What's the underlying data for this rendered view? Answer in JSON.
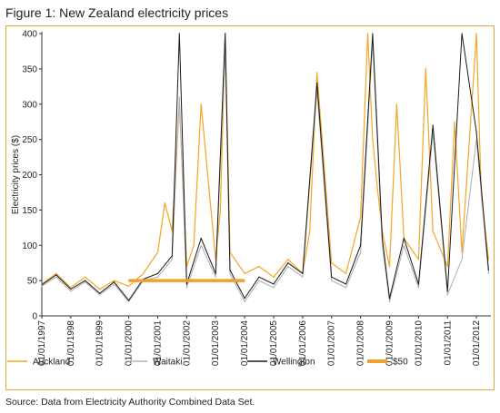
{
  "figure": {
    "title": "Figure 1: New Zealand electricity prices",
    "source": "Source: Data from Electricity Authority Combined Data Set."
  },
  "colors": {
    "auckland": "#f5a623",
    "waitaki": "#b3b3b3",
    "wellington": "#1a1a1a",
    "ref50": "#f0a030",
    "frame": "#e8a33a"
  },
  "chart_data": {
    "type": "line",
    "title": "",
    "xlabel": "",
    "ylabel": "Electricity prices ($)",
    "ylim": [
      0,
      400
    ],
    "yticks": [
      0,
      50,
      100,
      150,
      200,
      250,
      300,
      350,
      400
    ],
    "xlim": [
      "1997-01-01",
      "2012-07-01"
    ],
    "xtick_labels": [
      "01/01/1997",
      "01/01/1998",
      "01/01/1999",
      "01/01/2000",
      "01/01/2001",
      "01/01/2002",
      "01/01/2003",
      "01/01/2004",
      "01/01/2005",
      "01/01/2006",
      "01/01/2007",
      "01/01/2008",
      "01/01/2009",
      "01/01/2010",
      "01/01/2011",
      "01/01/2012"
    ],
    "grid": false,
    "legend_position": "bottom",
    "series": [
      {
        "name": "Auckland",
        "x": [
          "1997-01",
          "1997-07",
          "1998-01",
          "1998-07",
          "1999-01",
          "1999-07",
          "2000-01",
          "2000-07",
          "2001-01",
          "2001-04",
          "2001-07",
          "2001-10",
          "2002-01",
          "2002-04",
          "2002-07",
          "2003-01",
          "2003-03",
          "2003-05",
          "2003-07",
          "2004-01",
          "2004-07",
          "2005-01",
          "2005-07",
          "2006-01",
          "2006-04",
          "2006-07",
          "2007-01",
          "2007-07",
          "2008-01",
          "2008-04",
          "2008-06",
          "2008-08",
          "2008-10",
          "2009-01",
          "2009-04",
          "2009-07",
          "2010-01",
          "2010-04",
          "2010-07",
          "2011-01",
          "2011-04",
          "2011-07",
          "2012-01",
          "2012-03",
          "2012-06"
        ],
        "values": [
          45,
          60,
          40,
          55,
          38,
          50,
          42,
          60,
          90,
          160,
          120,
          300,
          70,
          100,
          300,
          80,
          150,
          400,
          90,
          60,
          70,
          55,
          80,
          60,
          120,
          345,
          75,
          60,
          140,
          400,
          250,
          180,
          120,
          70,
          300,
          110,
          80,
          350,
          120,
          70,
          275,
          90,
          400,
          170,
          80
        ]
      },
      {
        "name": "Waitaki",
        "x": [
          "1997-01",
          "1997-07",
          "1998-01",
          "1998-07",
          "1999-01",
          "1999-07",
          "2000-01",
          "2000-07",
          "2001-01",
          "2001-07",
          "2001-10",
          "2002-01",
          "2002-07",
          "2003-01",
          "2003-05",
          "2003-07",
          "2004-01",
          "2004-07",
          "2005-01",
          "2005-07",
          "2006-01",
          "2006-07",
          "2007-01",
          "2007-07",
          "2008-01",
          "2008-06",
          "2008-10",
          "2009-01",
          "2009-07",
          "2010-01",
          "2010-07",
          "2011-01",
          "2011-07",
          "2012-01",
          "2012-06"
        ],
        "values": [
          42,
          55,
          35,
          48,
          30,
          45,
          20,
          50,
          55,
          80,
          310,
          40,
          100,
          55,
          380,
          60,
          20,
          50,
          40,
          70,
          55,
          320,
          50,
          40,
          90,
          390,
          100,
          20,
          100,
          40,
          260,
          30,
          80,
          250,
          60
        ]
      },
      {
        "name": "Wellington",
        "x": [
          "1997-01",
          "1997-07",
          "1998-01",
          "1998-07",
          "1999-01",
          "1999-07",
          "2000-01",
          "2000-07",
          "2001-01",
          "2001-07",
          "2001-10",
          "2002-01",
          "2002-07",
          "2003-01",
          "2003-05",
          "2003-07",
          "2004-01",
          "2004-07",
          "2005-01",
          "2005-07",
          "2006-01",
          "2006-07",
          "2007-01",
          "2007-07",
          "2008-01",
          "2008-06",
          "2008-10",
          "2009-01",
          "2009-07",
          "2010-01",
          "2010-07",
          "2011-01",
          "2011-07",
          "2012-01",
          "2012-06"
        ],
        "values": [
          44,
          58,
          38,
          50,
          32,
          48,
          22,
          52,
          60,
          85,
          400,
          45,
          110,
          60,
          400,
          65,
          25,
          55,
          45,
          75,
          60,
          330,
          55,
          45,
          100,
          400,
          110,
          25,
          110,
          45,
          270,
          35,
          400,
          260,
          65
        ]
      },
      {
        "name": "$50",
        "x": [
          "2000-01",
          "2004-01"
        ],
        "values": [
          50,
          50
        ]
      }
    ]
  }
}
